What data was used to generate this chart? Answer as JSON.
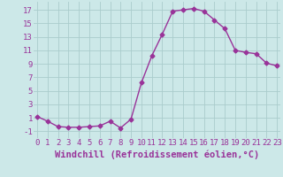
{
  "x": [
    0,
    1,
    2,
    3,
    4,
    5,
    6,
    7,
    8,
    9,
    10,
    11,
    12,
    13,
    14,
    15,
    16,
    17,
    18,
    19,
    20,
    21,
    22,
    23
  ],
  "y": [
    1.2,
    0.5,
    -0.3,
    -0.4,
    -0.4,
    -0.3,
    -0.2,
    0.5,
    -0.5,
    0.8,
    6.2,
    10.2,
    13.4,
    16.8,
    17.0,
    17.2,
    16.8,
    15.5,
    14.2,
    11.0,
    10.7,
    10.5,
    9.1,
    8.7
  ],
  "line_color": "#993399",
  "marker": "D",
  "marker_size": 2.5,
  "bg_color": "#cce8e8",
  "grid_color": "#aacccc",
  "xlabel": "Windchill (Refroidissement éolien,°C)",
  "xlabel_fontsize": 7.5,
  "xtick_labels": [
    "0",
    "1",
    "2",
    "3",
    "4",
    "5",
    "6",
    "7",
    "8",
    "9",
    "10",
    "11",
    "12",
    "13",
    "14",
    "15",
    "16",
    "17",
    "18",
    "19",
    "20",
    "21",
    "22",
    "23"
  ],
  "ytick_values": [
    -1,
    1,
    3,
    5,
    7,
    9,
    11,
    13,
    15,
    17
  ],
  "ylim": [
    -2.0,
    18.2
  ],
  "xlim": [
    -0.3,
    23.3
  ],
  "tick_fontsize": 6.5,
  "line_width": 1.0
}
